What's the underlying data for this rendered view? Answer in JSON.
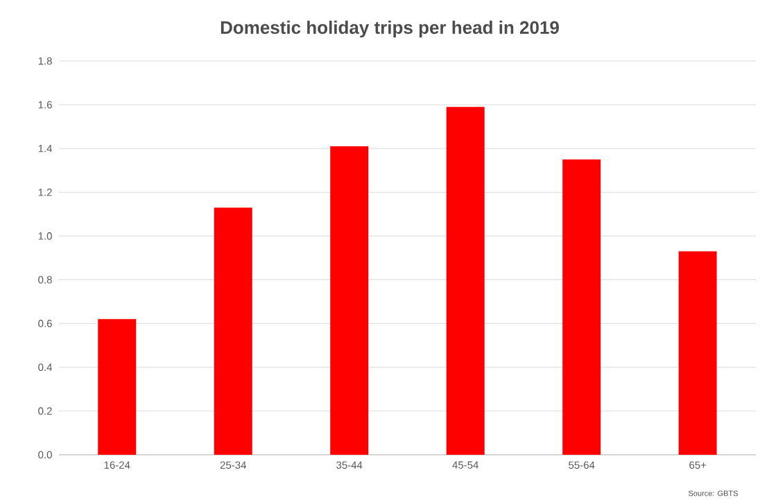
{
  "chart_data": {
    "type": "bar",
    "title": "Domestic holiday trips per head in 2019",
    "categories": [
      "16-24",
      "25-34",
      "35-44",
      "45-54",
      "55-64",
      "65+"
    ],
    "values": [
      0.62,
      1.13,
      1.41,
      1.59,
      1.35,
      0.93
    ],
    "color": "#ff0000",
    "ylim": [
      0,
      1.8
    ],
    "yticks": [
      {
        "value": 0,
        "label": "0.0"
      },
      0.2,
      0.4,
      0.6,
      0.8,
      {
        "value": 1,
        "label": "1.0"
      },
      1.2,
      1.4,
      1.6,
      1.8
    ],
    "grid": "y",
    "annotations": [
      "Source: GBTS"
    ]
  }
}
